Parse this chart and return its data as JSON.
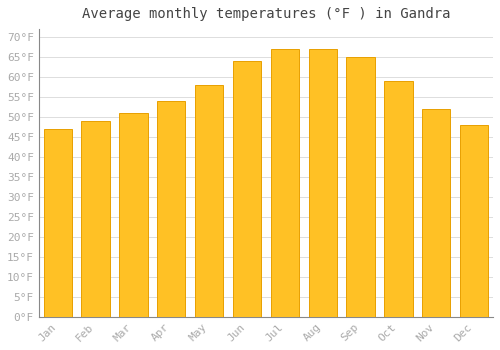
{
  "title": "Average monthly temperatures (°F ) in Gandra",
  "months": [
    "Jan",
    "Feb",
    "Mar",
    "Apr",
    "May",
    "Jun",
    "Jul",
    "Aug",
    "Sep",
    "Oct",
    "Nov",
    "Dec"
  ],
  "values": [
    47,
    49,
    51,
    54,
    58,
    64,
    67,
    67,
    65,
    59,
    52,
    48
  ],
  "bar_color": "#FFC125",
  "bar_edge_color": "#E8A000",
  "background_color": "#FFFFFF",
  "grid_color": "#DDDDDD",
  "tick_color": "#AAAAAA",
  "title_color": "#444444",
  "ylim": [
    0,
    72
  ],
  "yticks": [
    0,
    5,
    10,
    15,
    20,
    25,
    30,
    35,
    40,
    45,
    50,
    55,
    60,
    65,
    70
  ],
  "title_fontsize": 10,
  "tick_fontsize": 8,
  "bar_width": 0.75
}
